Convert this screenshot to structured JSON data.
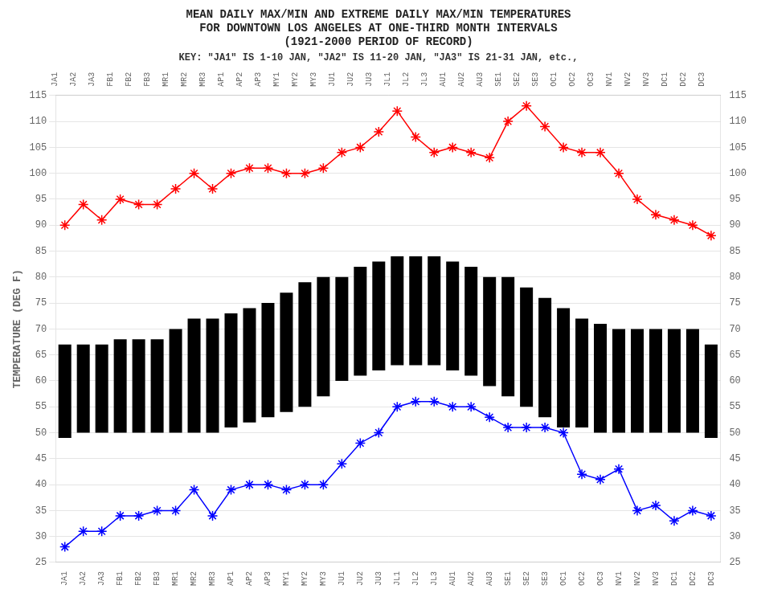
{
  "chart_data": {
    "type": "bar",
    "title": [
      "MEAN DAILY MAX/MIN AND EXTREME DAILY MAX/MIN TEMPERATURES",
      "FOR DOWNTOWN LOS ANGELES AT ONE-THIRD MONTH INTERVALS",
      "(1921-2000 PERIOD OF RECORD)"
    ],
    "subtitle": "KEY: \"JA1\" IS 1-10 JAN, \"JA2\" IS 11-20 JAN, \"JA3\" IS 21-31 JAN, etc.,",
    "ylabel": "TEMPERATURE (DEG F)",
    "categories": [
      "JA1",
      "JA2",
      "JA3",
      "FB1",
      "FB2",
      "FB3",
      "MR1",
      "MR2",
      "MR3",
      "AP1",
      "AP2",
      "AP3",
      "MY1",
      "MY2",
      "MY3",
      "JU1",
      "JU2",
      "JU3",
      "JL1",
      "JL2",
      "JL3",
      "AU1",
      "AU2",
      "AU3",
      "SE1",
      "SE2",
      "SE3",
      "OC1",
      "OC2",
      "OC3",
      "NV1",
      "NV2",
      "NV3",
      "DC1",
      "DC2",
      "DC3"
    ],
    "series": [
      {
        "type": "bar",
        "color": "#000000",
        "values": [
          [
            49,
            67
          ],
          [
            50,
            67
          ],
          [
            50,
            67
          ],
          [
            50,
            68
          ],
          [
            50,
            68
          ],
          [
            50,
            68
          ],
          [
            50,
            70
          ],
          [
            50,
            72
          ],
          [
            50,
            72
          ],
          [
            51,
            73
          ],
          [
            52,
            74
          ],
          [
            53,
            75
          ],
          [
            54,
            77
          ],
          [
            55,
            79
          ],
          [
            57,
            80
          ],
          [
            60,
            80
          ],
          [
            61,
            82
          ],
          [
            62,
            83
          ],
          [
            63,
            84
          ],
          [
            63,
            84
          ],
          [
            63,
            84
          ],
          [
            62,
            83
          ],
          [
            61,
            82
          ],
          [
            59,
            80
          ],
          [
            57,
            80
          ],
          [
            55,
            78
          ],
          [
            53,
            76
          ],
          [
            51,
            74
          ],
          [
            51,
            72
          ],
          [
            50,
            71
          ],
          [
            50,
            70
          ],
          [
            50,
            70
          ],
          [
            50,
            70
          ],
          [
            50,
            70
          ],
          [
            50,
            70
          ],
          [
            49,
            67
          ]
        ]
      },
      {
        "type": "line",
        "color": "#ff0000",
        "marker": "star",
        "values": [
          90,
          94,
          91,
          95,
          94,
          94,
          97,
          100,
          97,
          100,
          101,
          101,
          100,
          100,
          101,
          104,
          105,
          108,
          112,
          107,
          104,
          105,
          104,
          103,
          110,
          113,
          109,
          105,
          104,
          104,
          100,
          95,
          92,
          91,
          90,
          88
        ]
      },
      {
        "type": "line",
        "color": "#0000ff",
        "marker": "star",
        "values": [
          28,
          31,
          31,
          34,
          34,
          35,
          35,
          39,
          34,
          39,
          40,
          40,
          39,
          40,
          40,
          44,
          48,
          50,
          55,
          56,
          56,
          55,
          55,
          53,
          51,
          51,
          51,
          50,
          42,
          41,
          43,
          35,
          36,
          33,
          35,
          34
        ]
      }
    ],
    "ylim": [
      25,
      115
    ],
    "yticks": [
      25,
      30,
      35,
      40,
      45,
      50,
      55,
      60,
      65,
      70,
      75,
      80,
      85,
      90,
      95,
      100,
      105,
      110,
      115
    ],
    "y2lim": [
      25,
      115
    ],
    "y2ticks": [
      25,
      30,
      35,
      40,
      45,
      50,
      55,
      60,
      65,
      70,
      75,
      80,
      85,
      90,
      95,
      100,
      105,
      110,
      115
    ],
    "grid": "y"
  }
}
